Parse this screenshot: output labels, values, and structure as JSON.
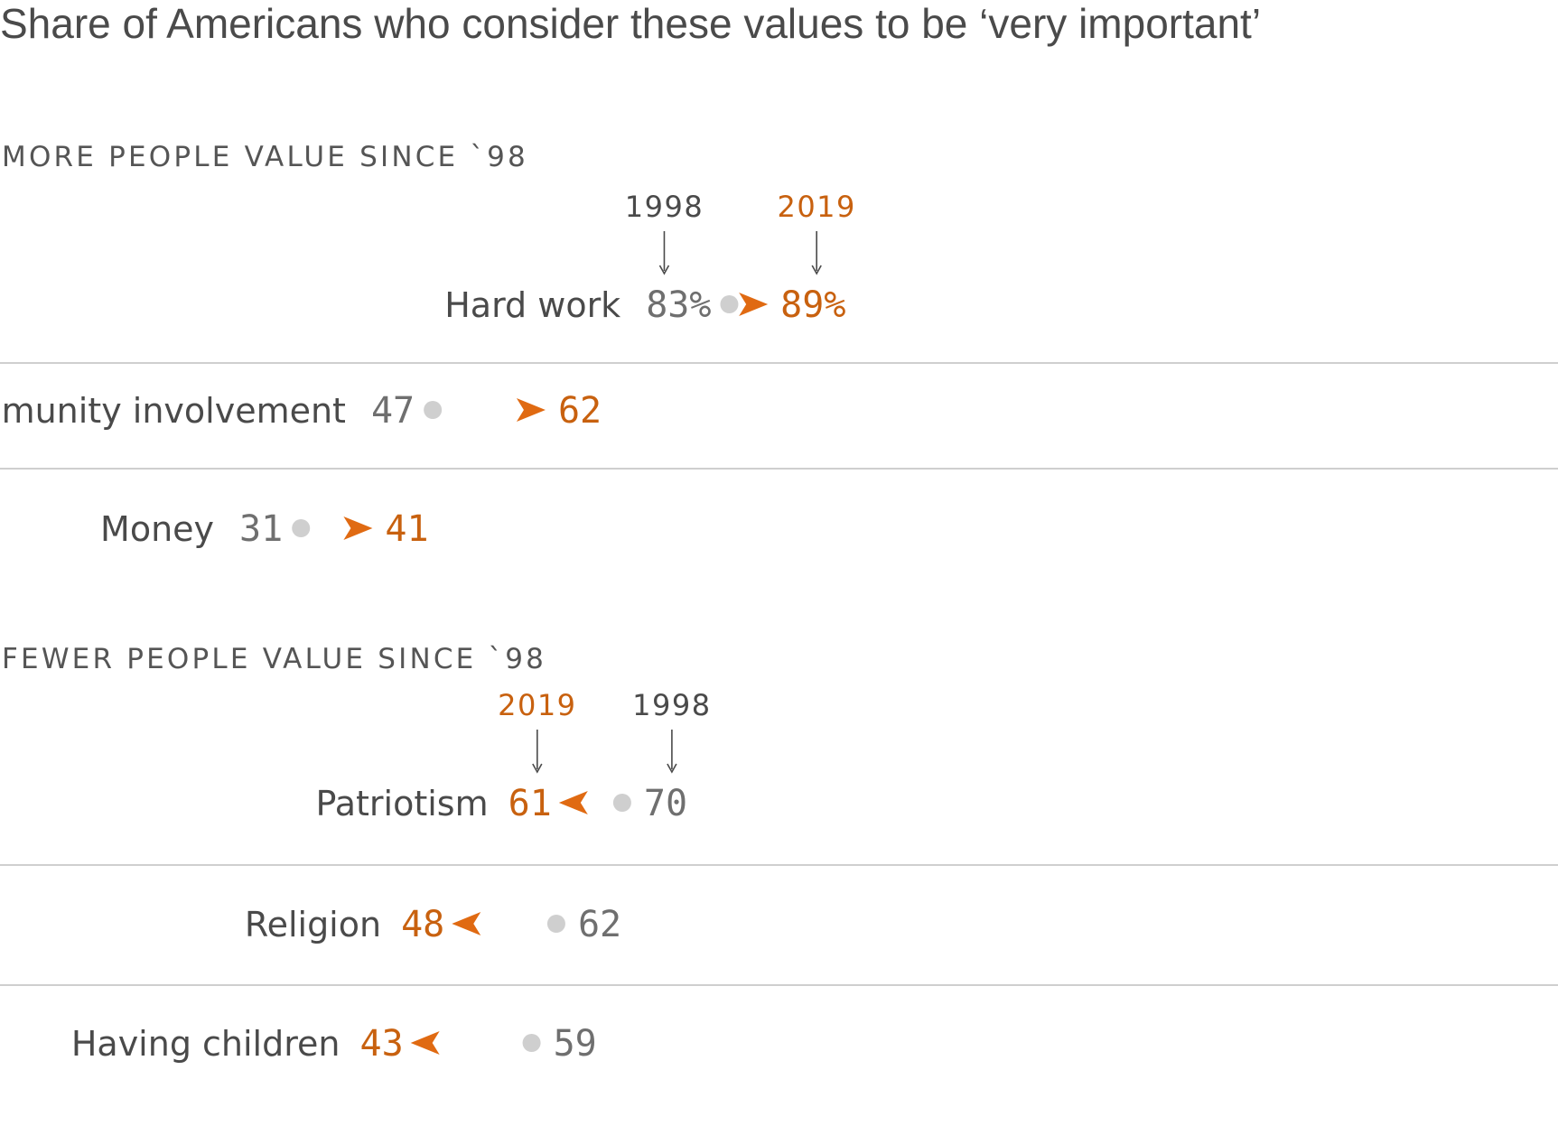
{
  "title": "Share of Americans who consider these values to be ‘very important’",
  "colors": {
    "accent": "#e06a12",
    "accent_text": "#c8610f",
    "start_dot": "#cfcfcf",
    "gradient_start": "#ddd6cf",
    "text_dark": "#4a4a4a",
    "text_gray": "#6f6f6f"
  },
  "annotations": {
    "year_start": "1998",
    "year_end": "2019"
  },
  "chart_data": {
    "type": "arrow",
    "unit": "%",
    "series": [
      {
        "name": "1998"
      },
      {
        "name": "2019"
      }
    ],
    "groups": [
      {
        "heading": "MORE PEOPLE VALUE SINCE `98",
        "items": [
          {
            "label": "Hard work",
            "v1998": 83,
            "v2019": 89,
            "text1998": "83%",
            "text2019": "89%"
          },
          {
            "label": "Community involvement",
            "v1998": 47,
            "v2019": 62,
            "text1998": "47",
            "text2019": "62"
          },
          {
            "label": "Money",
            "v1998": 31,
            "v2019": 41,
            "text1998": "31",
            "text2019": "41"
          }
        ]
      },
      {
        "heading": "FEWER PEOPLE VALUE SINCE `98",
        "items": [
          {
            "label": "Patriotism",
            "v1998": 70,
            "v2019": 61,
            "text1998": "70",
            "text2019": "61"
          },
          {
            "label": "Religion",
            "v1998": 62,
            "v2019": 48,
            "text1998": "62",
            "text2019": "48"
          },
          {
            "label": "Having children",
            "v1998": 59,
            "v2019": 43,
            "text1998": "59",
            "text2019": "43"
          }
        ]
      }
    ]
  }
}
